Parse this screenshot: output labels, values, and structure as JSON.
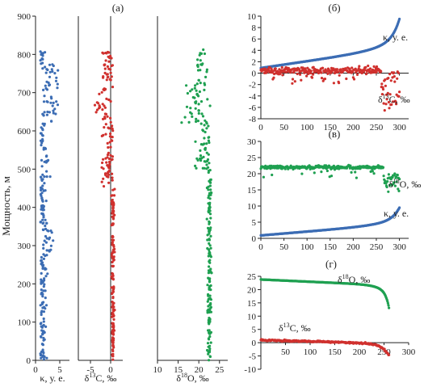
{
  "figure": {
    "panel_a_label": "(a)",
    "ylabel": "Мощность, м"
  },
  "colors": {
    "kappa": "#3c6db4",
    "d13c": "#d0312e",
    "d18o": "#1fa051",
    "axis": "#222222"
  },
  "chart_data": [
    {
      "id": "a1",
      "type": "scatter",
      "panel": "(a)",
      "xlabel": "κ, у. е.",
      "ylabel": "Мощность, м",
      "xlim": [
        0,
        7
      ],
      "ylim": [
        0,
        900
      ],
      "xticks": [
        0,
        5
      ],
      "yticks": [
        0,
        100,
        200,
        300,
        400,
        500,
        600,
        700,
        800,
        900
      ],
      "series": [
        {
          "color": "#3c6db4",
          "model": "kappa_depth"
        }
      ]
    },
    {
      "id": "a2",
      "type": "scatter",
      "xlabel": "δ13C, ‰",
      "xlim": [
        -8,
        3
      ],
      "ylim": [
        0,
        900
      ],
      "xticks": [
        -5,
        0
      ],
      "vline": 0,
      "series": [
        {
          "color": "#d0312e",
          "model": "d13c_depth"
        }
      ]
    },
    {
      "id": "a3",
      "type": "scatter",
      "xlabel": "δ18O, ‰",
      "xlim": [
        10,
        27
      ],
      "ylim": [
        0,
        900
      ],
      "xticks": [
        10,
        15,
        20,
        25
      ],
      "series": [
        {
          "color": "#1fa051",
          "model": "d18o_depth"
        }
      ]
    },
    {
      "id": "b",
      "type": "scatter",
      "panel": "(б)",
      "xlim": [
        0,
        320
      ],
      "ylim": [
        -8,
        10
      ],
      "xticks": [
        0,
        50,
        100,
        150,
        200,
        250,
        300
      ],
      "yticks": [
        -8,
        -6,
        -4,
        -2,
        0,
        2,
        4,
        6,
        8,
        10
      ],
      "series": [
        {
          "name": "κ, у. е.",
          "color": "#3c6db4",
          "model": "kappa_sorted"
        },
        {
          "name": "δ13C, ‰",
          "color": "#d0312e",
          "model": "d13c_index"
        }
      ]
    },
    {
      "id": "c",
      "type": "scatter",
      "panel": "(в)",
      "xlim": [
        0,
        320
      ],
      "ylim": [
        0,
        30
      ],
      "xticks": [
        0,
        50,
        100,
        150,
        200,
        250,
        300
      ],
      "yticks": [
        0,
        5,
        10,
        15,
        20,
        25,
        30
      ],
      "series": [
        {
          "name": "δ18O, ‰",
          "color": "#1fa051",
          "model": "d18o_index"
        },
        {
          "name": "κ, у. е.",
          "color": "#3c6db4",
          "model": "kappa_sorted"
        }
      ]
    },
    {
      "id": "d",
      "type": "scatter",
      "panel": "(г)",
      "xlim": [
        0,
        300
      ],
      "ylim": [
        -10,
        25
      ],
      "xticks": [
        50,
        100,
        150,
        200,
        250,
        300
      ],
      "yticks": [
        -10,
        -5,
        0,
        5,
        10,
        15,
        20,
        25
      ],
      "series": [
        {
          "name": "δ18O, ‰",
          "color": "#1fa051",
          "model": "d18o_sorted"
        },
        {
          "name": "δ13C, ‰",
          "color": "#d0312e",
          "model": "d13c_sorted"
        }
      ]
    }
  ]
}
